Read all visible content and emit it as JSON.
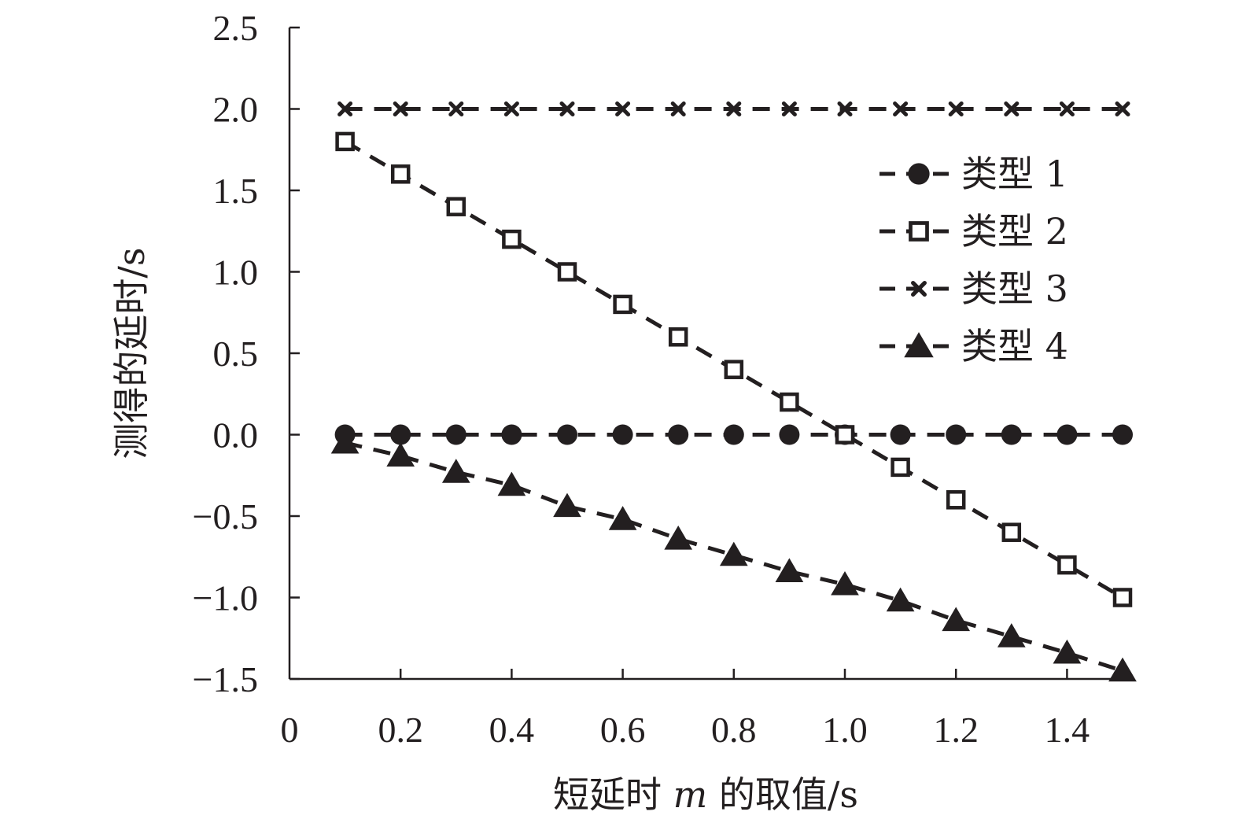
{
  "chart_data": {
    "type": "line",
    "title": "",
    "xlabel": "短延时 m 的取值/s",
    "xlabel_parts": {
      "prefix": "短延时 ",
      "var": "m",
      "suffix": " 的取值/s"
    },
    "ylabel": "测得的延时/s",
    "x": [
      0.1,
      0.2,
      0.3,
      0.4,
      0.5,
      0.6,
      0.7,
      0.8,
      0.9,
      1.0,
      1.1,
      1.2,
      1.3,
      1.4,
      1.5
    ],
    "xlim": [
      0,
      1.5
    ],
    "ylim": [
      -1.5,
      2.5
    ],
    "x_ticks": [
      {
        "value": 0,
        "label": "0"
      },
      {
        "value": 0.2,
        "label": "0.2"
      },
      {
        "value": 0.4,
        "label": "0.4"
      },
      {
        "value": 0.6,
        "label": "0.6"
      },
      {
        "value": 0.8,
        "label": "0.8"
      },
      {
        "value": 1.0,
        "label": "1.0"
      },
      {
        "value": 1.2,
        "label": "1.2"
      },
      {
        "value": 1.4,
        "label": "1.4"
      }
    ],
    "y_ticks": [
      {
        "value": 2.5,
        "label": "2.5"
      },
      {
        "value": 2.0,
        "label": "2.0"
      },
      {
        "value": 1.5,
        "label": "1.5"
      },
      {
        "value": 1.0,
        "label": "1.0"
      },
      {
        "value": 0.5,
        "label": "0.5"
      },
      {
        "value": 0.0,
        "label": "0.0"
      },
      {
        "value": -0.5,
        "label": "−0.5"
      },
      {
        "value": -1.0,
        "label": "−1.0"
      },
      {
        "value": -1.5,
        "label": "−1.5"
      }
    ],
    "grid": false,
    "legend_position": "top-right",
    "line_style": "dashed",
    "color": "#231f20",
    "series": [
      {
        "name": "类型 1",
        "marker": "circle",
        "values": [
          0,
          0,
          0,
          0,
          0,
          0,
          0,
          0,
          0,
          0,
          0,
          0,
          0,
          0,
          0
        ]
      },
      {
        "name": "类型 2",
        "marker": "square-open",
        "values": [
          1.8,
          1.6,
          1.4,
          1.2,
          1.0,
          0.8,
          0.6,
          0.4,
          0.2,
          0.0,
          -0.2,
          -0.4,
          -0.6,
          -0.8,
          -1.0
        ]
      },
      {
        "name": "类型 3",
        "marker": "x",
        "values": [
          2,
          2,
          2,
          2,
          2,
          2,
          2,
          2,
          2,
          2,
          2,
          2,
          2,
          2,
          2
        ]
      },
      {
        "name": "类型 4",
        "marker": "triangle",
        "values": [
          -0.05,
          -0.13,
          -0.23,
          -0.31,
          -0.44,
          -0.52,
          -0.64,
          -0.74,
          -0.84,
          -0.92,
          -1.02,
          -1.14,
          -1.24,
          -1.34,
          -1.45
        ]
      }
    ]
  }
}
